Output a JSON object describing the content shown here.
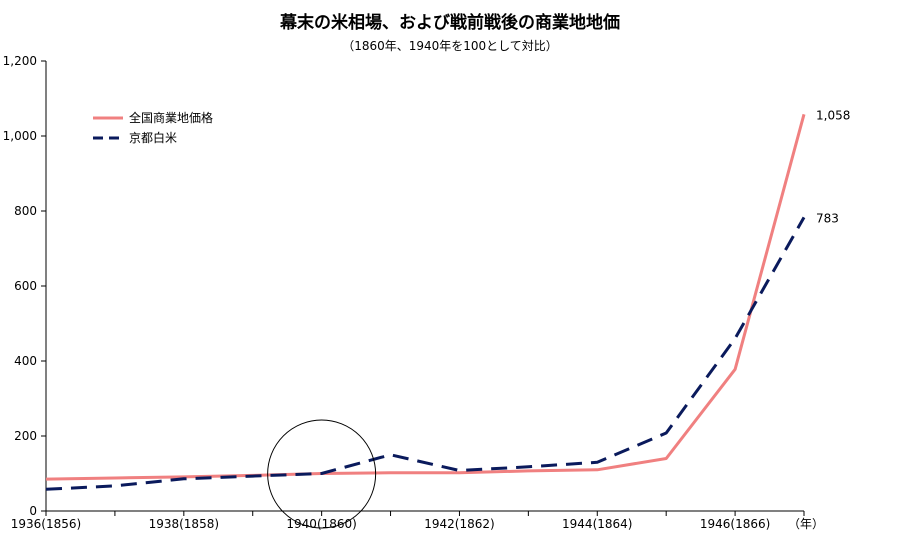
{
  "chart_data": {
    "type": "line",
    "title": "幕末の米相場、および戦前戦後の商業地地価",
    "subtitle": "（1860年、1940年を100として対比）",
    "x": [
      1936,
      1937,
      1938,
      1939,
      1940,
      1941,
      1942,
      1943,
      1944,
      1945,
      1946,
      1947
    ],
    "x_tick_labels": [
      "1936(1856)",
      "1938(1858)",
      "1940(1860)",
      "1942(1862)",
      "1944(1864)",
      "1946(1866)"
    ],
    "x_unit": "（年）",
    "ylim": [
      0,
      1200
    ],
    "y_ticks": [
      "0",
      "200",
      "400",
      "600",
      "800",
      "1,000",
      "1,200"
    ],
    "series": [
      {
        "name": "全国商業地価格",
        "color": "#f08080",
        "style": "solid",
        "values": [
          85,
          88,
          91,
          95,
          100,
          102,
          102,
          107,
          110,
          140,
          378,
          1058
        ],
        "end_label": "1,058"
      },
      {
        "name": "京都白米",
        "color": "#0a1a5c",
        "style": "dashed",
        "values": [
          58,
          67,
          86,
          93,
          100,
          150,
          108,
          118,
          130,
          208,
          460,
          783
        ],
        "end_label": "783"
      }
    ],
    "legend_position": "top-left",
    "annotation": "circle around 1940(1860)",
    "grid": false
  }
}
